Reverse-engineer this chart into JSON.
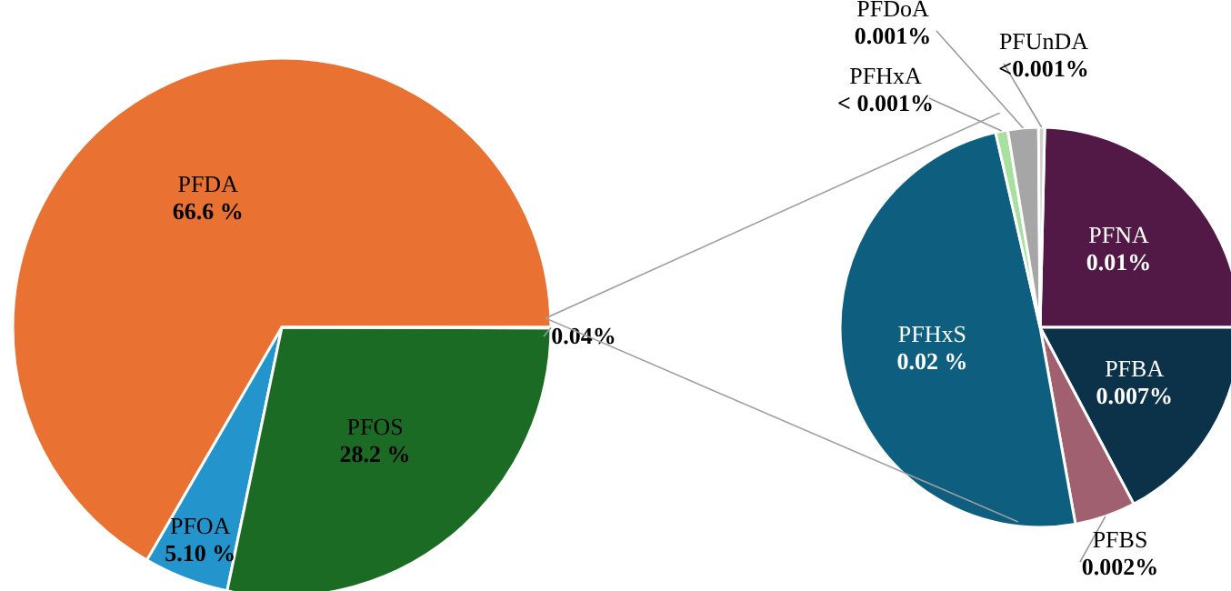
{
  "chart_data": [
    {
      "type": "pie",
      "categories": [
        "PFDA",
        "PFOA",
        "PFOS",
        null
      ],
      "values": [
        66.6,
        5.1,
        28.2,
        0.04
      ],
      "value_labels": [
        "66.6 %",
        "5.10 %",
        "28.2 %",
        "0.04%"
      ],
      "colors": [
        "#e97132",
        "#2494cd",
        "#1c6b24",
        "#a6a6a6"
      ]
    },
    {
      "type": "pie",
      "categories": [
        "PFNA",
        "PFBA",
        "PFBS",
        "PFHxS",
        "PFHxA",
        "PFDoA",
        "PFUnDA"
      ],
      "values": [
        0.01,
        0.007,
        0.002,
        0.02,
        0.0004,
        0.001,
        0.0002
      ],
      "value_labels": [
        "0.01%",
        "0.007%",
        "0.002%",
        "0.02 %",
        "< 0.001%",
        "0.001%",
        "<0.001%"
      ],
      "colors": [
        "#521946",
        "#0c3249",
        "#a0606f",
        "#0e5e80",
        "#a8e0a0",
        "#a6a6a6",
        "#cfcfcf"
      ]
    }
  ]
}
